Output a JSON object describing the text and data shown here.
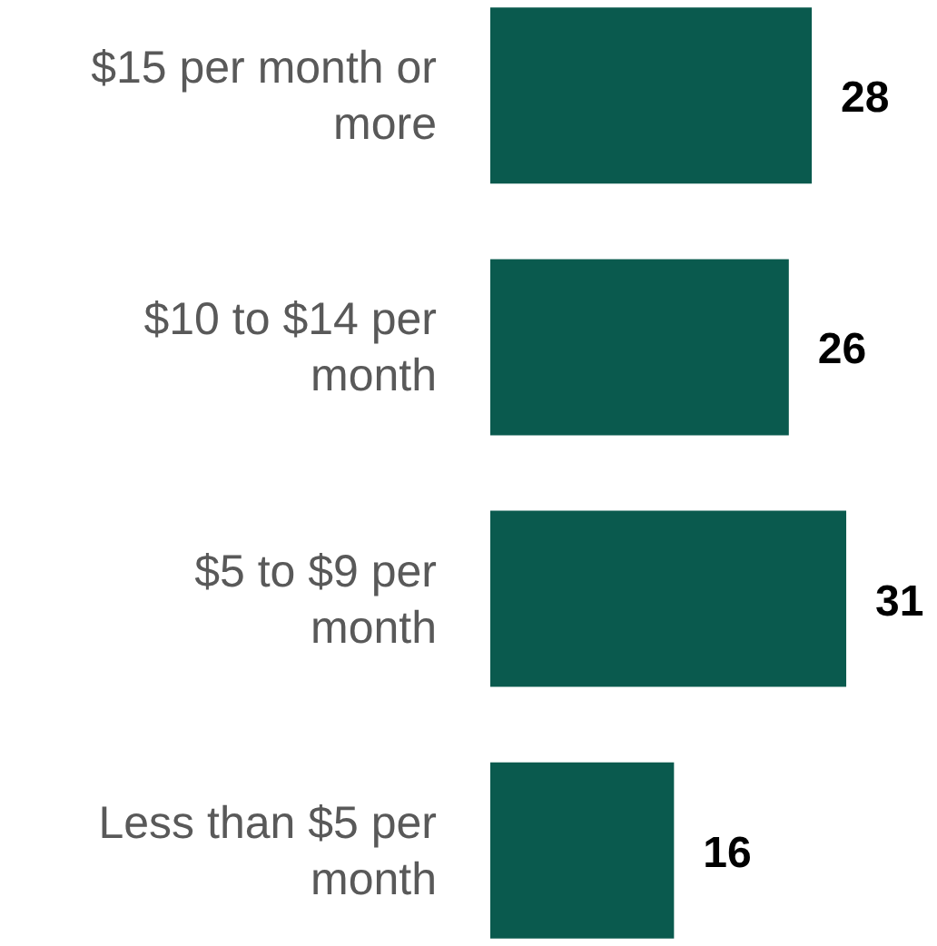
{
  "chart_data": {
    "type": "bar",
    "orientation": "horizontal",
    "categories": [
      "$15 per month or more",
      "$10 to $14 per month",
      "$5 to $9 per month",
      "Less than $5 per month"
    ],
    "values": [
      28,
      26,
      31,
      16
    ],
    "color": "#0a5a4e",
    "data_labels": true,
    "grid": false
  }
}
